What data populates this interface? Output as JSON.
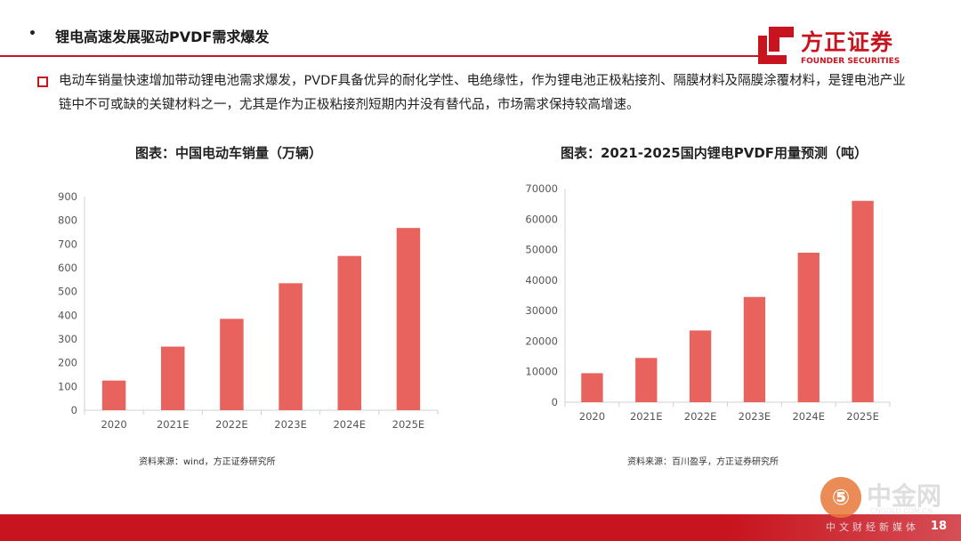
{
  "header": {
    "bullet": "•",
    "title": "锂电高速发展驱动PVDF需求爆发"
  },
  "logo": {
    "cn": "方正证券",
    "en": "FOUNDER SECURITIES"
  },
  "paragraph": "电动车销量快速增加带动锂电池需求爆发，PVDF具备优异的耐化学性、电绝缘性，作为锂电池正极粘接剂、隔膜材料及隔膜涂覆材料，是锂电池产业链中不可或缺的关键材料之一，尤其是作为正极粘接剂短期内并没有替代品，市场需求保持较高增速。",
  "colors": {
    "accent": "#c8141e",
    "bar": "#e8625e",
    "axis": "#d0d0d0",
    "tick_text": "#555555"
  },
  "chart_data": [
    {
      "type": "bar",
      "title": "图表：中国电动车销量（万辆）",
      "categories": [
        "2020",
        "2021E",
        "2022E",
        "2023E",
        "2024E",
        "2025E"
      ],
      "values": [
        125,
        268,
        385,
        535,
        650,
        768
      ],
      "ylim": [
        0,
        900
      ],
      "yticks": [
        0,
        100,
        200,
        300,
        400,
        500,
        600,
        700,
        800,
        900
      ],
      "grid": false,
      "legend": "none",
      "source": "资料来源：wind，方正证券研究所"
    },
    {
      "type": "bar",
      "title": "图表：2021-2025国内锂电PVDF用量预测（吨）",
      "categories": [
        "2020",
        "2021E",
        "2022E",
        "2023E",
        "2024E",
        "2025E"
      ],
      "values": [
        9500,
        14500,
        23500,
        34500,
        49000,
        66000
      ],
      "ylim": [
        0,
        70000
      ],
      "yticks": [
        0,
        10000,
        20000,
        30000,
        40000,
        50000,
        60000,
        70000
      ],
      "grid": false,
      "legend": "none",
      "source": "资料来源：百川盈孚，方正证券研究所"
    }
  ],
  "watermark": {
    "glyph": "⑤",
    "cn": "中金网",
    "en": "CNGOLD.COM.CN",
    "sub": "中文财经新媒体"
  },
  "page_number": "18"
}
